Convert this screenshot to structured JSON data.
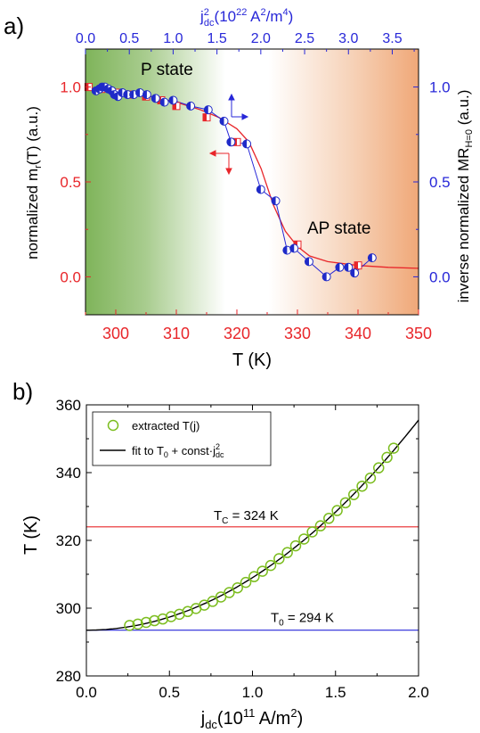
{
  "colors": {
    "red": "#e8262a",
    "blue": "#2727d8",
    "blue_marker": "#1f2ac8",
    "green_marker": "#7cbd1f",
    "black": "#000000",
    "grad_left": "#7fb45a",
    "grad_right": "#f0a878"
  },
  "chart_data": [
    {
      "type": "scatter",
      "panel_label": "a)",
      "xlabel": "T (K)",
      "ylabel_left": "normalized m_r(T) (a.u.)",
      "ylabel_left_parts": {
        "pre": "normalized m",
        "sub": "r",
        "post": "(T) (a.u.)"
      },
      "ylabel_right_parts": {
        "pre": "inverse normalized MR",
        "sub": "H=0",
        "post": " (a.u.)"
      },
      "xlabel_top_parts": {
        "pre": "j",
        "sup": "2",
        "sub": "dc",
        "mid": "(10",
        "sup2": "22",
        "post": " A",
        "sup3": "2",
        "post2": "/m",
        "sup4": "4",
        "end": ")"
      },
      "xlim": [
        295,
        350
      ],
      "ylim": [
        -0.2,
        1.2
      ],
      "xlim_top": [
        0,
        3.8
      ],
      "x_ticks": [
        "300",
        "310",
        "320",
        "330",
        "340",
        "350"
      ],
      "y_ticks": [
        "0.0",
        "0.5",
        "1.0"
      ],
      "x_top_ticks": [
        "0.0",
        "0.5",
        "1.0",
        "1.5",
        "2.0",
        "2.5",
        "3.0",
        "3.5"
      ],
      "y_right_ticks": [
        "0.0",
        "0.5",
        "1.0"
      ],
      "annotations": {
        "p_state": "P state",
        "ap_state": "AP state"
      },
      "background": "gradient green (left) to white to orange (right)",
      "series": [
        {
          "name": "",
          "marker": "half-filled square (red)",
          "x": [
            295.5,
            297.6,
            300,
            302.5,
            305,
            307.5,
            310,
            315,
            320,
            330,
            340
          ],
          "y": [
            1.0,
            0.99,
            0.97,
            0.96,
            0.95,
            0.93,
            0.9,
            0.84,
            0.71,
            0.17,
            0.06
          ]
        },
        {
          "name": "",
          "marker": "half-filled circle (blue), connected",
          "axis": "top/right",
          "x": [
            0.12,
            0.16,
            0.19,
            0.22,
            0.26,
            0.3,
            0.33,
            0.37,
            0.42,
            0.48,
            0.55,
            0.62,
            0.7,
            0.8,
            0.9,
            1.0,
            1.2,
            1.4,
            1.58,
            1.66,
            1.84,
            2.0,
            2.17,
            2.3,
            2.38,
            2.55,
            2.75,
            2.9,
            3.0,
            3.07,
            3.27
          ],
          "y": [
            0.98,
            0.99,
            1.0,
            1.0,
            0.99,
            0.98,
            0.96,
            0.95,
            0.97,
            0.96,
            0.96,
            0.97,
            0.96,
            0.94,
            0.92,
            0.93,
            0.9,
            0.88,
            0.82,
            0.71,
            0.7,
            0.46,
            0.4,
            0.14,
            0.15,
            0.08,
            0.0,
            0.05,
            0.05,
            0.02,
            0.1
          ]
        },
        {
          "name": "",
          "marker": "red line (fit)",
          "x": [
            296,
            300,
            305,
            310,
            314,
            317,
            320,
            322,
            324,
            326,
            328,
            330,
            332,
            335,
            340,
            345,
            350
          ],
          "y": [
            0.99,
            0.98,
            0.955,
            0.92,
            0.88,
            0.84,
            0.78,
            0.71,
            0.57,
            0.38,
            0.24,
            0.16,
            0.11,
            0.08,
            0.06,
            0.05,
            0.045
          ]
        }
      ]
    },
    {
      "type": "scatter",
      "panel_label": "b)",
      "xlabel_parts": {
        "pre": "j",
        "sub": "dc",
        "post": "(10",
        "sup": "11",
        "end": " A/m",
        "sup2": "2",
        "close": ")"
      },
      "ylabel": "T (K)",
      "xlim": [
        0,
        2.0
      ],
      "ylim": [
        280,
        360
      ],
      "x_ticks": [
        "0.0",
        "0.5",
        "1.0",
        "1.5",
        "2.0"
      ],
      "y_ticks": [
        "280",
        "300",
        "320",
        "340",
        "360"
      ],
      "legend": {
        "position": "top-left",
        "entry1": "extracted T(j)",
        "entry2_parts": {
          "pre": "fit to T",
          "sub": "0",
          "mid": " + const·j",
          "sup": "2",
          "sub2": "dc"
        }
      },
      "hlines": [
        {
          "parts": {
            "pre": "T",
            "sub": "C",
            "post": " = 324 K"
          },
          "y": 324,
          "color": "red"
        },
        {
          "parts": {
            "pre": "T",
            "sub": "0",
            "post": " = 294 K"
          },
          "y": 293.5,
          "color": "blue"
        }
      ],
      "fit_curve": {
        "T0": 293.5,
        "const": 15.5
      },
      "series": [
        {
          "name": "extracted T(j)",
          "marker": "open circle (green)",
          "x": [
            0.26,
            0.31,
            0.36,
            0.41,
            0.46,
            0.51,
            0.56,
            0.61,
            0.66,
            0.71,
            0.76,
            0.81,
            0.86,
            0.91,
            0.96,
            1.01,
            1.06,
            1.11,
            1.16,
            1.21,
            1.26,
            1.31,
            1.36,
            1.41,
            1.46,
            1.51,
            1.56,
            1.61,
            1.66,
            1.71,
            1.76,
            1.81,
            1.85
          ],
          "y": [
            294.9,
            295.3,
            295.8,
            296.3,
            296.8,
            297.5,
            298.2,
            299.0,
            299.9,
            300.9,
            302.0,
            303.3,
            304.6,
            306.0,
            307.6,
            309.3,
            310.9,
            312.6,
            314.6,
            316.4,
            318.4,
            320.4,
            322.5,
            324.3,
            326.5,
            328.8,
            331.1,
            333.5,
            336.0,
            338.4,
            341.4,
            344.5,
            347.2
          ]
        }
      ]
    }
  ]
}
